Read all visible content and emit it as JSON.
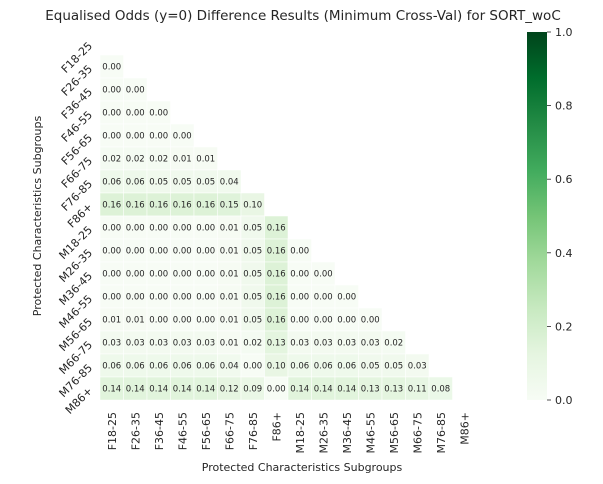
{
  "chart_data": {
    "type": "heatmap",
    "title": "Equalised Odds (y=0)  Difference Results (Minimum Cross-Val) for SORT_woC",
    "xlabel": "Protected Characteristics Subgroups",
    "ylabel": "Protected Characteristics Subgroups",
    "categories": [
      "F18-25",
      "F26-35",
      "F36-45",
      "F46-55",
      "F56-65",
      "F66-75",
      "F76-85",
      "F86+",
      "M18-25",
      "M26-35",
      "M36-45",
      "M46-55",
      "M56-65",
      "M66-75",
      "M76-85",
      "M86+"
    ],
    "mask": "lower-triangle",
    "colormap": "Greens",
    "vmin": 0,
    "vmax": 1,
    "colorbar_ticks": [
      "0.0",
      "0.2",
      "0.4",
      "0.6",
      "0.8",
      "1.0"
    ],
    "colorbar_values": [
      0,
      0.2,
      0.4,
      0.6,
      0.8,
      1.0
    ],
    "rows": [
      [],
      [
        "0.00"
      ],
      [
        "0.00",
        "0.00"
      ],
      [
        "0.00",
        "0.00",
        "0.00"
      ],
      [
        "0.00",
        "0.00",
        "0.00",
        "0.00"
      ],
      [
        "0.02",
        "0.02",
        "0.02",
        "0.01",
        "0.01"
      ],
      [
        "0.06",
        "0.06",
        "0.05",
        "0.05",
        "0.05",
        "0.04"
      ],
      [
        "0.16",
        "0.16",
        "0.16",
        "0.16",
        "0.16",
        "0.15",
        "0.10"
      ],
      [
        "0.00",
        "0.00",
        "0.00",
        "0.00",
        "0.00",
        "0.01",
        "0.05",
        "0.16"
      ],
      [
        "0.00",
        "0.00",
        "0.00",
        "0.00",
        "0.00",
        "0.01",
        "0.05",
        "0.16",
        "0.00"
      ],
      [
        "0.00",
        "0.00",
        "0.00",
        "0.00",
        "0.00",
        "0.01",
        "0.05",
        "0.16",
        "0.00",
        "0.00"
      ],
      [
        "0.00",
        "0.00",
        "0.00",
        "0.00",
        "0.00",
        "0.01",
        "0.05",
        "0.16",
        "0.00",
        "0.00",
        "0.00"
      ],
      [
        "0.01",
        "0.01",
        "0.00",
        "0.00",
        "0.00",
        "0.01",
        "0.05",
        "0.16",
        "0.00",
        "0.00",
        "0.00",
        "0.00"
      ],
      [
        "0.03",
        "0.03",
        "0.03",
        "0.03",
        "0.03",
        "0.01",
        "0.02",
        "0.13",
        "0.03",
        "0.03",
        "0.03",
        "0.03",
        "0.02"
      ],
      [
        "0.06",
        "0.06",
        "0.06",
        "0.06",
        "0.06",
        "0.04",
        "0.00",
        "0.10",
        "0.06",
        "0.06",
        "0.06",
        "0.05",
        "0.05",
        "0.03"
      ],
      [
        "0.14",
        "0.14",
        "0.14",
        "0.14",
        "0.14",
        "0.12",
        "0.09",
        "0.00",
        "0.14",
        "0.14",
        "0.14",
        "0.13",
        "0.13",
        "0.11",
        "0.08"
      ]
    ]
  }
}
